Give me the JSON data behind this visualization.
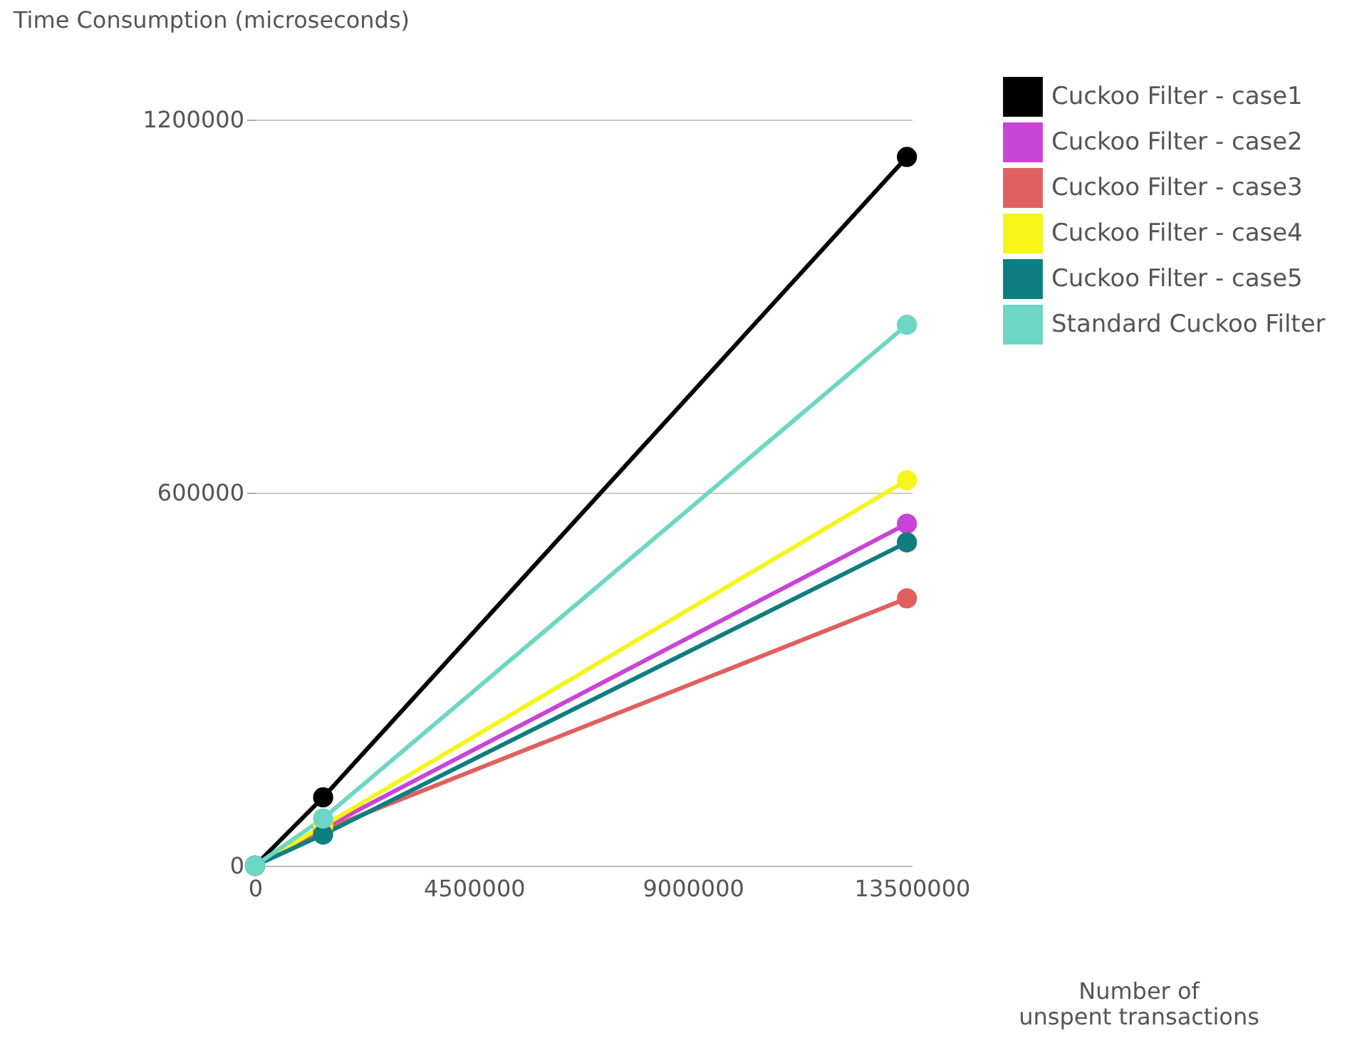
{
  "chart_data": {
    "type": "line",
    "xlabel": "Number of unspent transactions",
    "ylabel": "Time Consumption (microseconds)",
    "x": [
      0,
      1400000,
      13400000
    ],
    "series": [
      {
        "name": "Cuckoo Filter - case1",
        "color": "#000000",
        "values": [
          0,
          110000,
          1140000
        ]
      },
      {
        "name": "Cuckoo Filter - case2",
        "color": "#c944d6",
        "values": [
          0,
          60000,
          550000
        ]
      },
      {
        "name": "Cuckoo Filter - case3",
        "color": "#e06060",
        "values": [
          0,
          57000,
          430000
        ]
      },
      {
        "name": "Cuckoo Filter - case4",
        "color": "#f5f519",
        "values": [
          0,
          64000,
          620000
        ]
      },
      {
        "name": "Cuckoo Filter - case5",
        "color": "#0d7f80",
        "values": [
          0,
          50000,
          520000
        ]
      },
      {
        "name": "Standard Cuckoo Filter",
        "color": "#6dd6c4",
        "values": [
          0,
          76000,
          870000
        ]
      }
    ],
    "xlim": [
      0,
      13500000
    ],
    "xticks": [
      0,
      4500000,
      9000000,
      13500000
    ],
    "ylim": [
      0,
      1200000
    ],
    "yticks": [
      0,
      600000,
      1200000
    ],
    "grid": "y",
    "legend": "top right",
    "marker": "circle",
    "line_style": "solid"
  }
}
